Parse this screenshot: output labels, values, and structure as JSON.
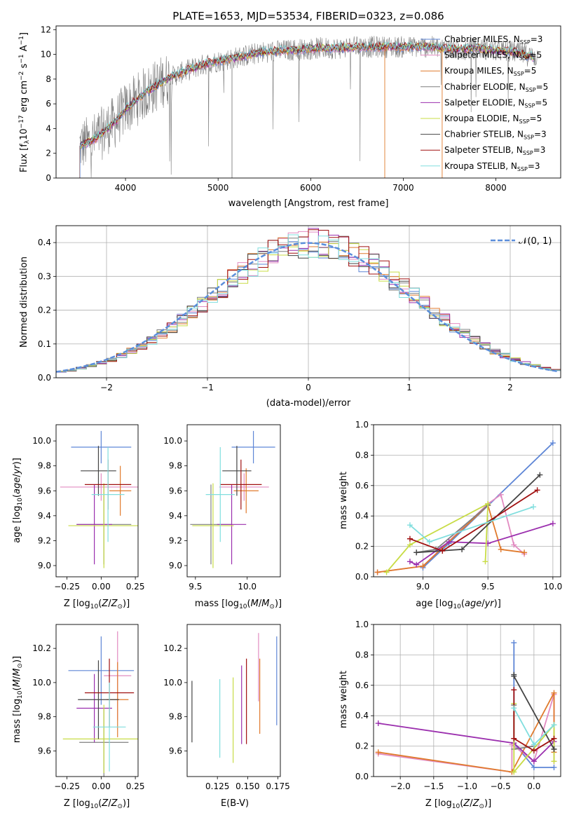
{
  "colors": {
    "chabrier_miles": "#5e86d6",
    "salpeter_miles": "#e28bc1",
    "kroupa_miles": "#e07a2c",
    "chabrier_elodie": "#7f7f7f",
    "salpeter_elodie": "#9b2fae",
    "kroupa_elodie": "#c8dc46",
    "chabrier_stelib": "#444444",
    "salpeter_stelib": "#a01010",
    "kroupa_stelib": "#80dede",
    "normal": "#5b8edb",
    "grid": "#b0b0b0"
  },
  "chart_data": [
    {
      "id": "spectrum",
      "type": "line",
      "title": "PLATE=1653, MJD=53534, FIBERID=0323, z=0.086",
      "xlabel": "wavelength [Angstrom, rest frame]",
      "ylabel": "Flux [f_λ10^-17 erg cm^-2 s^-1 A^-1]",
      "xlim": [
        3250,
        8700
      ],
      "ylim": [
        0,
        12.3
      ],
      "xticks": [
        4000,
        5000,
        6000,
        7000,
        8000
      ],
      "yticks": [
        0,
        2,
        4,
        6,
        8,
        10,
        12
      ],
      "grid": false,
      "legend_position": "top-right",
      "legend": [
        {
          "name": "Chabrier MILES, N_SSP=3",
          "color": "#5e86d6"
        },
        {
          "name": "Salpeter MILES, N_SSP=5",
          "color": "#e28bc1"
        },
        {
          "name": "Kroupa MILES, N_SSP=5",
          "color": "#e07a2c"
        },
        {
          "name": "Chabrier ELODIE, N_SSP=5",
          "color": "#7f7f7f"
        },
        {
          "name": "Salpeter ELODIE, N_SSP=5",
          "color": "#9b2fae"
        },
        {
          "name": "Kroupa ELODIE, N_SSP=5",
          "color": "#c8dc46"
        },
        {
          "name": "Chabrier STELIB, N_SSP=3",
          "color": "#444444"
        },
        {
          "name": "Salpeter STELIB, N_SSP=3",
          "color": "#a01010"
        },
        {
          "name": "Kroupa STELIB, N_SSP=3",
          "color": "#80dede"
        }
      ],
      "continuum": {
        "x": [
          3500,
          3600,
          3700,
          3800,
          3900,
          4000,
          4100,
          4200,
          4300,
          4400,
          4500,
          4700,
          4900,
          5100,
          5300,
          5500,
          5700,
          5900,
          6100,
          6300,
          6500,
          6700,
          6900,
          7100,
          7300,
          7400,
          7600,
          7800,
          8000,
          8200,
          8400
        ],
        "y": [
          2.6,
          2.9,
          3.3,
          4.0,
          4.6,
          5.6,
          6.2,
          6.8,
          7.3,
          7.8,
          8.2,
          8.8,
          9.3,
          9.6,
          9.9,
          10.2,
          10.3,
          10.4,
          10.5,
          10.5,
          10.6,
          10.6,
          10.6,
          10.6,
          10.6,
          10.5,
          10.4,
          10.5,
          10.3,
          10.2,
          9.8
        ]
      }
    },
    {
      "id": "residuals",
      "type": "line",
      "xlabel": "(data-model)/error",
      "ylabel": "Normed distribution",
      "xlim": [
        -2.5,
        2.5
      ],
      "ylim": [
        0,
        0.45
      ],
      "xticks": [
        -2,
        -1,
        0,
        1,
        2
      ],
      "yticks": [
        0.0,
        0.1,
        0.2,
        0.3,
        0.4
      ],
      "grid": true,
      "legend": [
        {
          "name": "𝒩(0, 1)",
          "style": "dashed",
          "color": "#5b8edb"
        }
      ],
      "legend_position": "top-right",
      "bin_width": 0.1
    },
    {
      "id": "age_vs_z",
      "type": "scatter",
      "xlabel": "Z [log10(Z/Z⊙)]",
      "ylabel": "age [log10(age/yr)]",
      "xlim": [
        -0.33,
        0.27
      ],
      "ylim": [
        8.91,
        10.13
      ],
      "xticks": [
        -0.25,
        0.0,
        0.25
      ],
      "yticks": [
        9.0,
        9.2,
        9.4,
        9.6,
        9.8,
        10.0
      ],
      "grid": false,
      "points": [
        {
          "color": "#5e86d6",
          "x": 0.0,
          "xerr": 0.22,
          "y": 9.95,
          "yerr": 0.13
        },
        {
          "color": "#e28bc1",
          "x": 0.0,
          "xerr": 0.3,
          "y": 9.63,
          "yerr": 0.11
        },
        {
          "color": "#e07a2c",
          "x": 0.14,
          "xerr": 0.08,
          "y": 9.6,
          "yerr": 0.2
        },
        {
          "color": "#7f7f7f",
          "x": 0.02,
          "xerr": 0.2,
          "y": 9.33,
          "yerr": 0.32
        },
        {
          "color": "#9b2fae",
          "x": -0.05,
          "xerr": 0.13,
          "y": 9.33,
          "yerr": 0.32
        },
        {
          "color": "#c8dc46",
          "x": 0.02,
          "xerr": 0.26,
          "y": 9.32,
          "yerr": 0.34
        },
        {
          "color": "#444444",
          "x": -0.02,
          "xerr": 0.13,
          "y": 9.76,
          "yerr": 0.2
        },
        {
          "color": "#a01010",
          "x": 0.05,
          "xerr": 0.17,
          "y": 9.65,
          "yerr": 0.2
        },
        {
          "color": "#80dede",
          "x": 0.05,
          "xerr": 0.12,
          "y": 9.57,
          "yerr": 0.38
        }
      ]
    },
    {
      "id": "age_vs_mass",
      "type": "scatter",
      "xlabel": "mass [log10(M/M⊙)]",
      "ylabel": "",
      "xlim": [
        9.42,
        10.32
      ],
      "ylim": [
        8.91,
        10.13
      ],
      "xticks": [
        9.5,
        10.0
      ],
      "yticks": [
        9.0,
        9.2,
        9.4,
        9.6,
        9.8,
        10.0
      ],
      "grid": false,
      "points": [
        {
          "color": "#5e86d6",
          "x": 10.06,
          "xerr": 0.21,
          "y": 9.95,
          "yerr": 0.13
        },
        {
          "color": "#e28bc1",
          "x": 9.97,
          "xerr": 0.24,
          "y": 9.63,
          "yerr": 0.11
        },
        {
          "color": "#e07a2c",
          "x": 9.99,
          "xerr": 0.12,
          "y": 9.6,
          "yerr": 0.18
        },
        {
          "color": "#7f7f7f",
          "x": 9.65,
          "xerr": 0.2,
          "y": 9.33,
          "yerr": 0.32
        },
        {
          "color": "#9b2fae",
          "x": 9.85,
          "xerr": 0.14,
          "y": 9.33,
          "yerr": 0.32
        },
        {
          "color": "#c8dc46",
          "x": 9.67,
          "xerr": 0.2,
          "y": 9.32,
          "yerr": 0.34
        },
        {
          "color": "#444444",
          "x": 9.9,
          "xerr": 0.14,
          "y": 9.76,
          "yerr": 0.2
        },
        {
          "color": "#a01010",
          "x": 9.94,
          "xerr": 0.2,
          "y": 9.65,
          "yerr": 0.2
        },
        {
          "color": "#80dede",
          "x": 9.74,
          "xerr": 0.14,
          "y": 9.57,
          "yerr": 0.38
        }
      ]
    },
    {
      "id": "massweight_vs_age",
      "type": "line",
      "xlabel": "age [log10(age/yr)]",
      "ylabel": "mass weight",
      "xlim": [
        8.62,
        10.06
      ],
      "ylim": [
        0,
        1.0
      ],
      "xticks": [
        9.0,
        9.5,
        10.0
      ],
      "yticks": [
        0.0,
        0.2,
        0.4,
        0.6,
        0.8,
        1.0
      ],
      "grid": true,
      "series": [
        {
          "color": "#5e86d6",
          "x": [
            9.0,
            9.2,
            10.0
          ],
          "y": [
            0.06,
            0.22,
            0.88
          ]
        },
        {
          "color": "#e28bc1",
          "x": [
            8.65,
            9.0,
            9.5,
            9.6,
            9.7,
            9.78
          ],
          "y": [
            0.03,
            0.07,
            0.48,
            0.54,
            0.21,
            0.15
          ]
        },
        {
          "color": "#e07a2c",
          "x": [
            8.65,
            9.0,
            9.5,
            9.6,
            9.78
          ],
          "y": [
            0.03,
            0.07,
            0.47,
            0.18,
            0.16
          ]
        },
        {
          "color": "#7f7f7f",
          "x": [
            8.95,
            9.1,
            9.5
          ],
          "y": [
            0.16,
            0.18,
            0.47
          ]
        },
        {
          "color": "#9b2fae",
          "x": [
            8.9,
            8.95,
            9.2,
            9.5,
            10.0
          ],
          "y": [
            0.1,
            0.08,
            0.23,
            0.22,
            0.35
          ]
        },
        {
          "color": "#c8dc46",
          "x": [
            8.72,
            8.9,
            9.5,
            9.48
          ],
          "y": [
            0.03,
            0.21,
            0.48,
            0.1
          ]
        },
        {
          "color": "#444444",
          "x": [
            8.95,
            9.3,
            9.9
          ],
          "y": [
            0.16,
            0.18,
            0.67
          ]
        },
        {
          "color": "#a01010",
          "x": [
            8.9,
            9.15,
            9.88
          ],
          "y": [
            0.25,
            0.17,
            0.57
          ]
        },
        {
          "color": "#80dede",
          "x": [
            8.9,
            9.05,
            9.85
          ],
          "y": [
            0.34,
            0.23,
            0.46
          ]
        }
      ]
    },
    {
      "id": "mass_vs_z",
      "type": "scatter",
      "xlabel": "Z [log10(Z/Z⊙)]",
      "ylabel": "mass [log10(M/M⊙)]",
      "xlim": [
        -0.33,
        0.27
      ],
      "ylim": [
        9.45,
        10.34
      ],
      "xticks": [
        -0.25,
        0.0,
        0.25
      ],
      "yticks": [
        9.6,
        9.8,
        10.0,
        10.2
      ],
      "grid": false,
      "points": [
        {
          "color": "#5e86d6",
          "x": 0.0,
          "xerr": 0.24,
          "y": 10.07,
          "yerr": 0.2
        },
        {
          "color": "#e28bc1",
          "x": 0.12,
          "xerr": 0.1,
          "y": 10.04,
          "yerr": 0.26
        },
        {
          "color": "#e07a2c",
          "x": 0.12,
          "xerr": 0.08,
          "y": 9.9,
          "yerr": 0.22
        },
        {
          "color": "#7f7f7f",
          "x": 0.02,
          "xerr": 0.18,
          "y": 9.65,
          "yerr": 0.2
        },
        {
          "color": "#9b2fae",
          "x": -0.05,
          "xerr": 0.13,
          "y": 9.85,
          "yerr": 0.2
        },
        {
          "color": "#c8dc46",
          "x": 0.02,
          "xerr": 0.3,
          "y": 9.67,
          "yerr": 0.2
        },
        {
          "color": "#444444",
          "x": -0.02,
          "xerr": 0.15,
          "y": 9.9,
          "yerr": 0.23
        },
        {
          "color": "#a01010",
          "x": 0.06,
          "xerr": 0.18,
          "y": 9.94,
          "yerr": 0.2
        },
        {
          "color": "#80dede",
          "x": 0.06,
          "xerr": 0.12,
          "y": 9.74,
          "yerr": 0.26
        }
      ]
    },
    {
      "id": "mass_vs_ebv",
      "type": "scatter",
      "xlabel": "E(B-V)",
      "ylabel": "",
      "xlim": [
        0.1,
        0.177
      ],
      "ylim": [
        9.45,
        10.34
      ],
      "xticks": [
        0.125,
        0.15,
        0.175
      ],
      "yticks": [
        9.6,
        9.8,
        10.0,
        10.2
      ],
      "grid": false,
      "points": [
        {
          "color": "#444444",
          "x": 0.104,
          "y": 9.83,
          "yerr": 0.18
        },
        {
          "color": "#80dede",
          "x": 0.127,
          "y": 9.79,
          "yerr": 0.23
        },
        {
          "color": "#c8dc46",
          "x": 0.138,
          "y": 9.78,
          "yerr": 0.25
        },
        {
          "color": "#9b2fae",
          "x": 0.145,
          "y": 9.87,
          "yerr": 0.23
        },
        {
          "color": "#a01010",
          "x": 0.149,
          "y": 9.89,
          "yerr": 0.25
        },
        {
          "color": "#e28bc1",
          "x": 0.159,
          "y": 10.09,
          "yerr": 0.2
        },
        {
          "color": "#e07a2c",
          "x": 0.16,
          "y": 9.92,
          "yerr": 0.22
        },
        {
          "color": "#5e86d6",
          "x": 0.174,
          "y": 10.01,
          "yerr": 0.26
        }
      ]
    },
    {
      "id": "massweight_vs_z",
      "type": "line",
      "xlabel": "Z [log10(Z/Z⊙)]",
      "ylabel": "mass weight",
      "xlim": [
        -2.4,
        0.4
      ],
      "ylim": [
        0,
        1.0
      ],
      "xticks": [
        -2.0,
        -1.5,
        -1.0,
        -0.5,
        0.0
      ],
      "yticks": [
        0.0,
        0.2,
        0.4,
        0.6,
        0.8,
        1.0
      ],
      "grid": true,
      "series": [
        {
          "color": "#5e86d6",
          "x": [
            -0.3,
            -0.3,
            0.0,
            0.3
          ],
          "y": [
            0.88,
            0.22,
            0.06,
            0.06
          ]
        },
        {
          "color": "#e28bc1",
          "x": [
            -2.33,
            -0.33,
            -0.33,
            0.0,
            0.3,
            0.3
          ],
          "y": [
            0.15,
            0.03,
            0.21,
            0.1,
            0.54,
            0.1
          ]
        },
        {
          "color": "#e07a2c",
          "x": [
            -2.33,
            -0.33,
            0.3,
            0.3
          ],
          "y": [
            0.16,
            0.03,
            0.55,
            0.16
          ]
        },
        {
          "color": "#7f7f7f",
          "x": [
            -0.3,
            -0.3,
            0.0
          ],
          "y": [
            0.47,
            0.18,
            0.2
          ]
        },
        {
          "color": "#9b2fae",
          "x": [
            -2.33,
            -0.3,
            0.0,
            0.3
          ],
          "y": [
            0.35,
            0.22,
            0.1,
            0.23
          ]
        },
        {
          "color": "#c8dc46",
          "x": [
            -0.3,
            -0.3,
            0.3,
            0.3
          ],
          "y": [
            0.48,
            0.03,
            0.34,
            0.1
          ]
        },
        {
          "color": "#444444",
          "x": [
            -0.3,
            -0.3,
            0.3,
            0.3
          ],
          "y": [
            0.67,
            0.66,
            0.18,
            0.18
          ]
        },
        {
          "color": "#a01010",
          "x": [
            -0.3,
            -0.3,
            0.0,
            0.3
          ],
          "y": [
            0.57,
            0.25,
            0.17,
            0.25
          ]
        },
        {
          "color": "#80dede",
          "x": [
            -0.3,
            0.0,
            0.3
          ],
          "y": [
            0.45,
            0.21,
            0.34
          ]
        }
      ]
    }
  ]
}
